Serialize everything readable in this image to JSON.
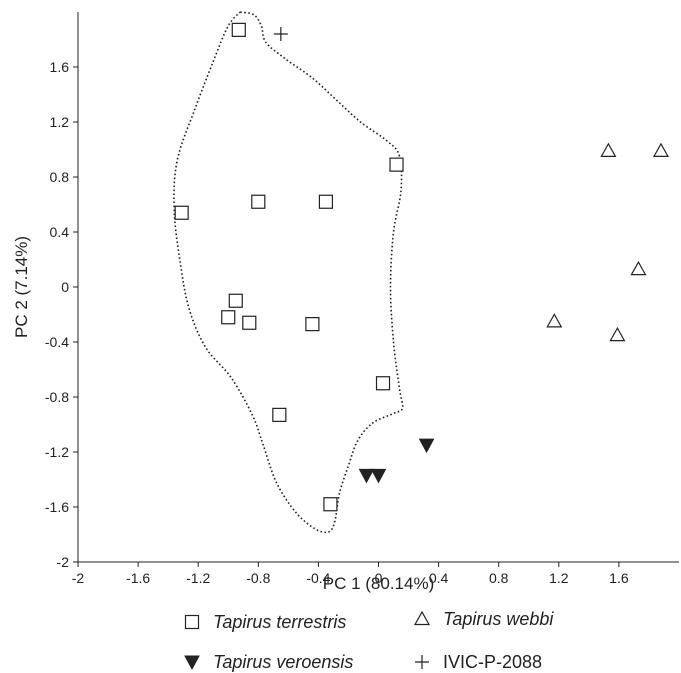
{
  "chart_data": {
    "type": "scatter",
    "xlabel": "PC 1 (80.14%)",
    "ylabel": "PC 2 (7.14%)",
    "xlim": [
      -2,
      2
    ],
    "ylim": [
      -2,
      2
    ],
    "x_ticks": [
      -2,
      -1.6,
      -1.2,
      -0.8,
      -0.4,
      0,
      0.4,
      0.8,
      1.2,
      1.6
    ],
    "y_ticks": [
      -2,
      -1.6,
      -1.2,
      -0.8,
      -0.4,
      0,
      0.4,
      0.8,
      1.2,
      1.6
    ],
    "x_tick_labels": [
      "-2",
      "-1.6",
      "-1.2",
      "-0.8",
      "-0.4",
      "0",
      "0.4",
      "0.8",
      "1.2",
      "1.6"
    ],
    "y_tick_labels": [
      "-2",
      "-1.6",
      "-1.2",
      "-0.8",
      "-0.4",
      "0",
      "0.4",
      "0.8",
      "1.2",
      "1.6"
    ],
    "grid": false,
    "legend_position": "bottom",
    "series": [
      {
        "name": "Tapirus terrestris",
        "marker": "square",
        "italic": true,
        "points": [
          {
            "x": -0.93,
            "y": 1.87
          },
          {
            "x": -1.31,
            "y": 0.54
          },
          {
            "x": -0.8,
            "y": 0.62
          },
          {
            "x": -0.35,
            "y": 0.62
          },
          {
            "x": 0.12,
            "y": 0.89
          },
          {
            "x": -0.95,
            "y": -0.1
          },
          {
            "x": -1.0,
            "y": -0.22
          },
          {
            "x": -0.86,
            "y": -0.26
          },
          {
            "x": -0.44,
            "y": -0.27
          },
          {
            "x": 0.03,
            "y": -0.7
          },
          {
            "x": -0.66,
            "y": -0.93
          },
          {
            "x": -0.32,
            "y": -1.58
          }
        ]
      },
      {
        "name": "Tapirus webbi",
        "marker": "triangle-up",
        "italic": true,
        "points": [
          {
            "x": 1.53,
            "y": 0.99
          },
          {
            "x": 1.88,
            "y": 0.99
          },
          {
            "x": 1.73,
            "y": 0.13
          },
          {
            "x": 1.17,
            "y": -0.25
          },
          {
            "x": 1.59,
            "y": -0.35
          }
        ]
      },
      {
        "name": "Tapirus veroensis",
        "marker": "triangle-down-filled",
        "italic": true,
        "points": [
          {
            "x": -0.08,
            "y": -1.37
          },
          {
            "x": 0.0,
            "y": -1.37
          },
          {
            "x": 0.32,
            "y": -1.15
          }
        ]
      },
      {
        "name": "IVIC-P-2088",
        "marker": "plus",
        "italic": false,
        "points": [
          {
            "x": -0.65,
            "y": 1.84
          }
        ]
      }
    ],
    "hull": {
      "style": "dotted",
      "points": [
        [
          -0.92,
          2.0
        ],
        [
          -0.83,
          1.98
        ],
        [
          -0.78,
          1.9
        ],
        [
          -0.75,
          1.78
        ],
        [
          -0.62,
          1.66
        ],
        [
          -0.44,
          1.52
        ],
        [
          -0.28,
          1.36
        ],
        [
          -0.12,
          1.2
        ],
        [
          0.06,
          1.06
        ],
        [
          0.14,
          0.95
        ],
        [
          0.15,
          0.7
        ],
        [
          0.1,
          0.4
        ],
        [
          0.08,
          0.0
        ],
        [
          0.1,
          -0.4
        ],
        [
          0.14,
          -0.74
        ],
        [
          0.16,
          -0.88
        ],
        [
          0.1,
          -0.92
        ],
        [
          -0.04,
          -0.99
        ],
        [
          -0.14,
          -1.12
        ],
        [
          -0.2,
          -1.3
        ],
        [
          -0.26,
          -1.5
        ],
        [
          -0.29,
          -1.7
        ],
        [
          -0.33,
          -1.78
        ],
        [
          -0.42,
          -1.76
        ],
        [
          -0.55,
          -1.64
        ],
        [
          -0.68,
          -1.42
        ],
        [
          -0.77,
          -1.14
        ],
        [
          -0.84,
          -0.93
        ],
        [
          -0.98,
          -0.66
        ],
        [
          -1.15,
          -0.44
        ],
        [
          -1.26,
          -0.16
        ],
        [
          -1.32,
          0.18
        ],
        [
          -1.36,
          0.56
        ],
        [
          -1.34,
          0.92
        ],
        [
          -1.22,
          1.3
        ],
        [
          -1.1,
          1.64
        ],
        [
          -1.0,
          1.9
        ],
        [
          -0.92,
          2.0
        ]
      ]
    }
  }
}
